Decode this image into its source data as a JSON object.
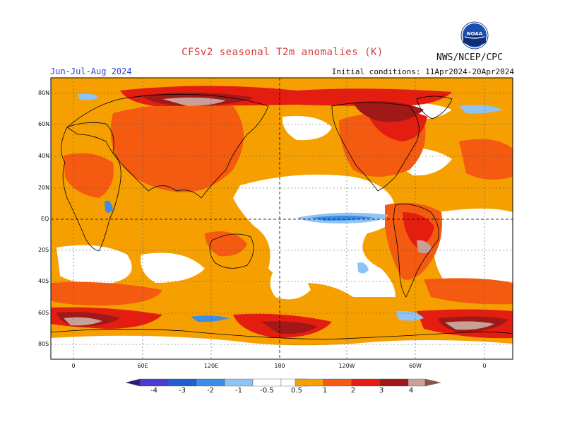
{
  "header": {
    "title": "CFSv2 seasonal T2m anomalies (K)",
    "season": "Jun-Jul-Aug 2024",
    "initial_conditions": "Initial conditions: 11Apr2024-20Apr2024",
    "agency": "NWS/NCEP/CPC",
    "logo_text": "NOAA"
  },
  "map": {
    "lat_labels": [
      "80N",
      "60N",
      "40N",
      "20N",
      "EQ",
      "20S",
      "40S",
      "60S",
      "80S"
    ],
    "lon_labels": [
      "0",
      "60E",
      "120E",
      "180",
      "120W",
      "60W",
      "0"
    ]
  },
  "colorbar": {
    "labels": [
      "-4",
      "-3",
      "-2",
      "-1",
      "-0.5",
      "0.5",
      "1",
      "2",
      "3",
      "4"
    ],
    "colors": {
      "lt_m4": "#2b1877",
      "m4_m3": "#4b3bd0",
      "m3_m2": "#1f5fd0",
      "m2_m1": "#3a8ee8",
      "m1_m05": "#8ec4f5",
      "neutral": "#ffffff",
      "p05_p1": "#f5a000",
      "p1_p2": "#f45a10",
      "p2_p3": "#e51d10",
      "p3_p4": "#a01818",
      "p4_p5": "#c8a096",
      "gt_p5": "#8a5648"
    }
  }
}
